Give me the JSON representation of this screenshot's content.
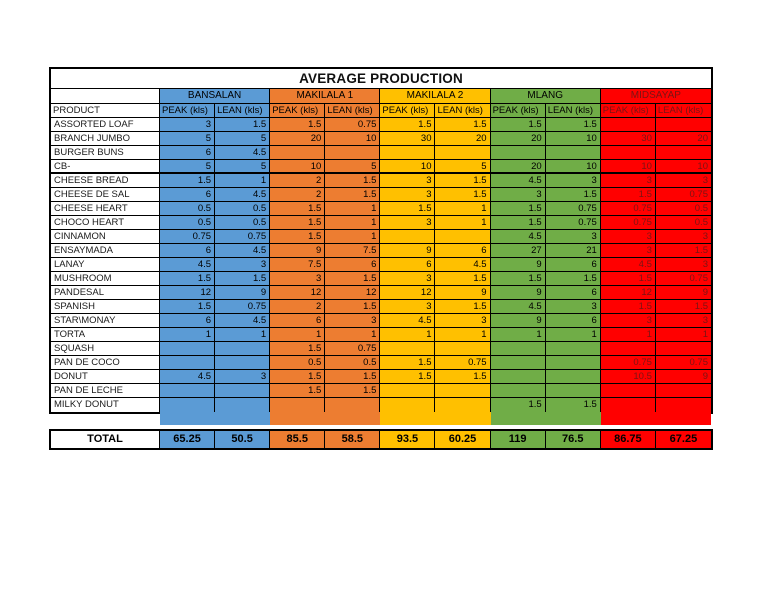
{
  "title": "AVERAGE PRODUCTION",
  "table": {
    "product_header": "PRODUCT",
    "peak_header": "PEAK (kls)",
    "lean_header": "LEAN (kls)",
    "regions": [
      {
        "name": "BANSALAN",
        "fill": "#5B9BD5",
        "text": "#000000"
      },
      {
        "name": "MAKILALA 1",
        "fill": "#ED7D31",
        "text": "#000000"
      },
      {
        "name": "MAKILALA 2",
        "fill": "#FFC000",
        "text": "#000000"
      },
      {
        "name": "MLANG",
        "fill": "#70AD47",
        "text": "#000000"
      },
      {
        "name": "MIDSAYAP",
        "fill": "#FF0000",
        "text": "#7B1414"
      }
    ],
    "rows": [
      {
        "product": "ASSORTED LOAF",
        "values": [
          "3",
          "1.5",
          "1.5",
          "0.75",
          "1.5",
          "1.5",
          "1.5",
          "1.5",
          "",
          ""
        ]
      },
      {
        "product": "BRANCH JUMBO",
        "values": [
          "5",
          "5",
          "20",
          "10",
          "30",
          "20",
          "20",
          "10",
          "30",
          "20"
        ]
      },
      {
        "product": "BURGER BUNS",
        "values": [
          "6",
          "4.5",
          "",
          "",
          "",
          "",
          "",
          "",
          "",
          ""
        ]
      },
      {
        "product": "CB-",
        "values": [
          "5",
          "5",
          "10",
          "5",
          "10",
          "5",
          "20",
          "10",
          "10",
          "10"
        ]
      },
      {
        "product": "CHEESE BREAD",
        "values": [
          "1.5",
          "1",
          "2",
          "1.5",
          "3",
          "1.5",
          "4.5",
          "3",
          "3",
          "3"
        ]
      },
      {
        "product": "CHEESE DE SAL",
        "values": [
          "6",
          "4.5",
          "2",
          "1.5",
          "3",
          "1.5",
          "3",
          "1.5",
          "1.5",
          "0.75"
        ]
      },
      {
        "product": "CHEESE HEART",
        "values": [
          "0.5",
          "0.5",
          "1.5",
          "1",
          "1.5",
          "1",
          "1.5",
          "0.75",
          "0.75",
          "0.5"
        ]
      },
      {
        "product": "CHOCO HEART",
        "values": [
          "0.5",
          "0.5",
          "1.5",
          "1",
          "3",
          "1",
          "1.5",
          "0.75",
          "0.75",
          "0.5"
        ]
      },
      {
        "product": "CINNAMON",
        "values": [
          "0.75",
          "0.75",
          "1.5",
          "1",
          "",
          "",
          "4.5",
          "3",
          "3",
          "3"
        ]
      },
      {
        "product": "ENSAYMADA",
        "values": [
          "6",
          "4.5",
          "9",
          "7.5",
          "9",
          "6",
          "27",
          "21",
          "3",
          "1.5"
        ]
      },
      {
        "product": "LANAY",
        "values": [
          "4.5",
          "3",
          "7.5",
          "6",
          "6",
          "4.5",
          "9",
          "6",
          "4.5",
          "3"
        ]
      },
      {
        "product": "MUSHROOM",
        "values": [
          "1.5",
          "1.5",
          "3",
          "1.5",
          "3",
          "1.5",
          "1.5",
          "1.5",
          "1.5",
          "0.75"
        ]
      },
      {
        "product": "PANDESAL",
        "values": [
          "12",
          "9",
          "12",
          "12",
          "12",
          "9",
          "9",
          "6",
          "12",
          "9"
        ]
      },
      {
        "product": "SPANISH",
        "values": [
          "1.5",
          "0.75",
          "2",
          "1.5",
          "3",
          "1.5",
          "4.5",
          "3",
          "1.5",
          "1.5"
        ]
      },
      {
        "product": "STAR\\MONAY",
        "values": [
          "6",
          "4.5",
          "6",
          "3",
          "4.5",
          "3",
          "9",
          "6",
          "3",
          "3"
        ]
      },
      {
        "product": "TORTA",
        "values": [
          "1",
          "1",
          "1",
          "1",
          "1",
          "1",
          "1",
          "1",
          "1",
          "1"
        ]
      },
      {
        "product": "SQUASH",
        "values": [
          "",
          "",
          "1.5",
          "0.75",
          "",
          "",
          "",
          "",
          "",
          ""
        ]
      },
      {
        "product": "PAN DE COCO",
        "values": [
          "",
          "",
          "0.5",
          "0.5",
          "1.5",
          "0.75",
          "",
          "",
          "0.75",
          "0.75"
        ]
      },
      {
        "product": "DONUT",
        "values": [
          "4.5",
          "3",
          "1.5",
          "1.5",
          "1.5",
          "1.5",
          "",
          "",
          "10.5",
          "9"
        ]
      },
      {
        "product": "PAN DE LECHE",
        "values": [
          "",
          "",
          "1.5",
          "1.5",
          "",
          "",
          "",
          "",
          "",
          ""
        ]
      },
      {
        "product": "MILKY DONUT",
        "values": [
          "",
          "",
          "",
          "",
          "",
          "",
          "1.5",
          "1.5",
          "",
          ""
        ]
      }
    ],
    "total": {
      "label": "TOTAL",
      "values": [
        "65.25",
        "50.5",
        "85.5",
        "58.5",
        "93.5",
        "60.25",
        "119",
        "76.5",
        "86.75",
        "67.25"
      ]
    }
  }
}
